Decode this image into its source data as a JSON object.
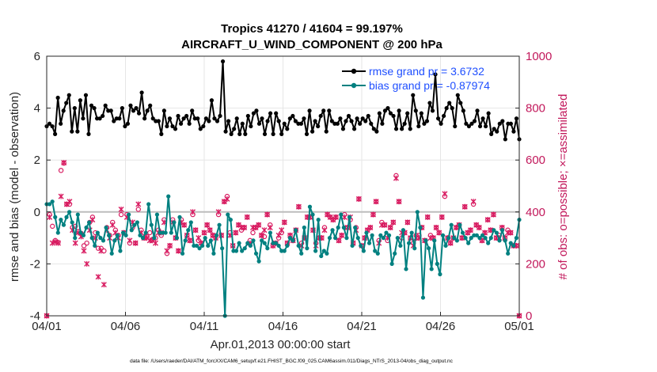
{
  "chart_data": {
    "type": "line",
    "title": "Tropics 41270 / 41604 = 99.197%",
    "subtitle": "AIRCRAFT_U_WIND_COMPONENT @ 200 hPa",
    "xlabel": "Apr.01,2013 00:00:00 start",
    "ylabel": "rmse and bias (model - observation)",
    "ylabel_right": "# of obs: o=possible; ×=assimilated",
    "ylim": [
      -4,
      6
    ],
    "ylim_right": [
      0,
      1000
    ],
    "xlim": [
      0,
      30
    ],
    "yticks": [
      "-4",
      "-2",
      "0",
      "2",
      "4",
      "6"
    ],
    "yticks_right": [
      "0",
      "200",
      "400",
      "600",
      "800",
      "1000"
    ],
    "xticks": [
      {
        "pos": 0,
        "label": "04/01"
      },
      {
        "pos": 5,
        "label": "04/06"
      },
      {
        "pos": 10,
        "label": "04/11"
      },
      {
        "pos": 15,
        "label": "04/16"
      },
      {
        "pos": 20,
        "label": "04/21"
      },
      {
        "pos": 25,
        "label": "04/26"
      },
      {
        "pos": 30,
        "label": "05/01"
      }
    ],
    "footnote": "data file: /Users/raeder/DAI/ATM_forcXX/CAM6_setup/f.e21.FHIST_BGC.f09_025.CAM6assim.011/Diags_NTrS_2013-04/obs_diag_output.nc",
    "legend": [
      "rmse grand pr = 3.6732",
      "bias grand pr = -0.87974"
    ],
    "colors": {
      "rmse": "#000000",
      "bias": "#008080",
      "obs": "#d81b60",
      "zero": "#bdbdbd",
      "grid": "#e6e6e6"
    },
    "series": [
      {
        "name": "rmse",
        "values": [
          3.3,
          3.4,
          3.3,
          3.0,
          4.4,
          3.4,
          3.9,
          4.2,
          4.5,
          3.1,
          4.0,
          3.1,
          4.3,
          3.6,
          4.5,
          3.0,
          4.1,
          4.0,
          3.6,
          3.6,
          3.7,
          4.1,
          3.9,
          3.9,
          3.5,
          3.6,
          3.6,
          4.0,
          3.3,
          3.4,
          4.1,
          3.9,
          4.0,
          3.8,
          4.6,
          3.6,
          3.9,
          4.1,
          3.6,
          3.5,
          3.5,
          3.0,
          3.9,
          3.3,
          3.6,
          3.3,
          3.2,
          3.7,
          3.4,
          3.6,
          3.7,
          3.4,
          3.9,
          3.6,
          3.6,
          3.2,
          3.3,
          3.6,
          3.5,
          4.3,
          3.6,
          3.5,
          3.7,
          5.8,
          3.1,
          3.5,
          3.0,
          3.2,
          3.6,
          3.0,
          3.4,
          3.0,
          3.7,
          3.3,
          3.8,
          3.9,
          3.4,
          3.6,
          3.0,
          3.5,
          3.8,
          3.0,
          3.8,
          3.5,
          3.0,
          3.4,
          3.2,
          3.6,
          3.7,
          3.5,
          3.4,
          3.4,
          3.6,
          3.0,
          3.9,
          3.1,
          3.5,
          3.3,
          3.7,
          3.9,
          3.1,
          3.9,
          3.5,
          3.4,
          3.4,
          3.6,
          3.2,
          3.5,
          3.7,
          3.5,
          3.2,
          3.6,
          3.4,
          3.6,
          3.5,
          3.7,
          3.4,
          3.2,
          3.1,
          3.8,
          3.4,
          3.9,
          4.0,
          3.8,
          3.7,
          3.2,
          3.9,
          3.2,
          3.4,
          3.8,
          3.2,
          4.5,
          3.9,
          3.3,
          3.8,
          3.4,
          3.5,
          4.2,
          3.9,
          5.3,
          3.6,
          3.4,
          3.7,
          4.0,
          4.2,
          4.0,
          3.3,
          4.5,
          4.2,
          3.9,
          3.4,
          3.3,
          3.4,
          3.5,
          3.9,
          3.3,
          3.6,
          3.3,
          3.8,
          3.0,
          3.2,
          3.1,
          3.4,
          3.5,
          2.8,
          3.4,
          3.4,
          3.1,
          3.6,
          2.8
        ]
      },
      {
        "name": "bias",
        "values": [
          0.3,
          0.3,
          0.4,
          -0.2,
          -0.8,
          -0.3,
          -0.5,
          -0.2,
          0.0,
          -0.4,
          -1.0,
          -0.1,
          -0.8,
          -0.9,
          -0.6,
          -0.4,
          -1.0,
          -1.3,
          -0.8,
          -1.0,
          -1.1,
          -0.6,
          -0.9,
          -1.6,
          -1.1,
          -0.9,
          -1.5,
          -0.8,
          -0.9,
          -0.1,
          -0.7,
          -0.5,
          -0.4,
          -0.9,
          -1.0,
          -0.8,
          0.3,
          -0.5,
          -1.0,
          -0.1,
          -0.8,
          -0.8,
          -0.8,
          0.6,
          -0.8,
          -0.4,
          -1.0,
          -0.2,
          -1.6,
          -1.1,
          -0.7,
          -0.4,
          -1.3,
          -1.3,
          -1.4,
          -1.3,
          -1.0,
          -1.3,
          -1.1,
          -1.6,
          -0.9,
          -0.5,
          -1.4,
          -4.0,
          -0.1,
          -0.3,
          -1.5,
          -1.5,
          -1.2,
          -1.5,
          -1.4,
          -1.2,
          -1.3,
          -1.1,
          -1.6,
          -1.9,
          -1.1,
          -1.2,
          -1.4,
          -0.8,
          -1.2,
          -1.2,
          -1.3,
          -1.5,
          -1.5,
          -1.3,
          -1.0,
          -1.1,
          -0.7,
          -1.3,
          -1.6,
          -0.6,
          -1.4,
          0.2,
          -0.1,
          -1.5,
          -0.3,
          -1.7,
          -1.5,
          -1.6,
          -1.0,
          -0.7,
          -1.0,
          -0.6,
          -0.1,
          -0.6,
          -1.0,
          -0.2,
          -1.3,
          -0.6,
          -1.0,
          -1.3,
          -1.5,
          -0.8,
          -1.2,
          -0.9,
          -1.5,
          -1.6,
          -0.9,
          -1.0,
          -0.8,
          -0.9,
          -2.0,
          -1.6,
          -1.0,
          -1.3,
          -0.7,
          -2.2,
          -1.2,
          -0.8,
          -1.4,
          0.0,
          -0.6,
          -3.3,
          -1.1,
          -1.4,
          -2.2,
          -1.1,
          -2.0,
          -2.4,
          -0.9,
          -1.3,
          -1.0,
          -0.5,
          -1.0,
          -1.1,
          -0.5,
          -0.8,
          -1.0,
          -1.2,
          -1.0,
          -0.9,
          -0.9,
          -1.0,
          -0.9,
          -1.0,
          -1.2,
          -1.0,
          -0.7,
          -0.8,
          -1.1,
          -0.7,
          -1.1,
          -1.6,
          -1.2,
          -1.3,
          -1.0,
          -0.3
        ]
      },
      {
        "name": "obs_possible",
        "values": [
          0,
          390,
          345,
          290,
          283,
          560,
          588,
          430,
          430,
          340,
          345,
          325,
          318,
          270,
          280,
          360,
          380,
          320,
          260,
          260,
          250,
          340,
          310,
          360,
          330,
          310,
          390,
          320,
          390,
          280,
          340,
          280,
          410,
          330,
          300,
          305,
          320,
          295,
          300,
          330,
          310,
          370,
          240,
          270,
          370,
          300,
          250,
          370,
          350,
          310,
          290,
          390,
          330,
          290,
          280,
          320,
          350,
          330,
          310,
          300,
          390,
          310,
          440,
          460,
          320,
          270,
          320,
          350,
          330,
          340,
          380,
          290,
          320,
          340,
          350,
          310,
          305,
          390,
          350,
          270,
          280,
          300,
          320,
          360,
          280,
          310,
          290,
          330,
          420,
          280,
          300,
          380,
          380,
          330,
          280,
          300,
          300,
          340,
          390,
          380,
          370,
          380,
          290,
          310,
          390,
          340,
          370,
          280,
          340,
          450,
          270,
          300,
          330,
          340,
          390,
          440,
          290,
          360,
          350,
          290,
          340,
          360,
          540,
          440,
          300,
          320,
          360,
          300,
          280,
          310,
          310,
          340,
          290,
          380,
          310,
          300,
          340,
          320,
          380,
          460,
          300,
          280,
          300,
          340,
          350,
          300,
          420,
          320,
          330,
          430,
          350,
          340,
          290,
          320,
          370,
          330,
          390,
          300,
          310,
          340,
          300,
          330,
          320,
          270,
          270,
          0
        ]
      },
      {
        "name": "obs_assimilated",
        "values": [
          0,
          380,
          280,
          285,
          280,
          460,
          590,
          430,
          440,
          330,
          280,
          320,
          305,
          250,
          200,
          330,
          370,
          300,
          150,
          250,
          120,
          330,
          300,
          350,
          320,
          300,
          410,
          320,
          380,
          290,
          360,
          280,
          430,
          320,
          300,
          300,
          290,
          290,
          280,
          320,
          320,
          360,
          250,
          270,
          360,
          300,
          250,
          360,
          350,
          310,
          290,
          400,
          330,
          300,
          280,
          320,
          350,
          330,
          310,
          300,
          400,
          310,
          440,
          450,
          310,
          270,
          320,
          350,
          340,
          340,
          380,
          280,
          340,
          340,
          350,
          310,
          330,
          390,
          340,
          270,
          280,
          310,
          330,
          360,
          280,
          310,
          290,
          330,
          420,
          270,
          300,
          380,
          380,
          330,
          270,
          300,
          300,
          330,
          390,
          380,
          370,
          380,
          290,
          310,
          380,
          340,
          380,
          280,
          330,
          450,
          270,
          300,
          330,
          340,
          390,
          440,
          280,
          350,
          350,
          300,
          340,
          360,
          530,
          440,
          320,
          320,
          360,
          300,
          270,
          300,
          300,
          340,
          290,
          380,
          300,
          300,
          340,
          320,
          380,
          470,
          300,
          280,
          300,
          340,
          350,
          300,
          420,
          320,
          330,
          440,
          350,
          340,
          290,
          320,
          370,
          330,
          390,
          300,
          300,
          340,
          300,
          320,
          320,
          270,
          270,
          0
        ]
      }
    ]
  }
}
